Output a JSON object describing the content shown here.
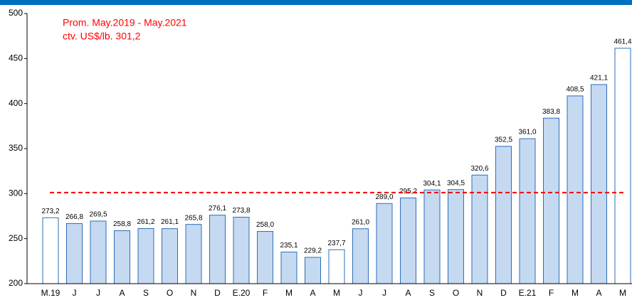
{
  "chart_data": {
    "type": "bar",
    "annotations": [
      "Prom. May.2019 - May.2021",
      "ctv. US$/lb. 301,2"
    ],
    "reference_line": {
      "value": 301.2,
      "color": "#ff0000"
    },
    "categories": [
      "M.19",
      "J",
      "J",
      "A",
      "S",
      "O",
      "N",
      "D",
      "E.20",
      "F",
      "M",
      "A",
      "M",
      "J",
      "J",
      "A",
      "S",
      "O",
      "N",
      "D",
      "E.21",
      "F",
      "M",
      "A",
      "M"
    ],
    "values": [
      273.2,
      266.8,
      269.5,
      258.8,
      261.2,
      261.1,
      265.8,
      276.1,
      273.8,
      258.0,
      235.1,
      229.2,
      237.7,
      261.0,
      289.0,
      295.2,
      304.1,
      304.5,
      320.6,
      352.5,
      361.0,
      383.8,
      408.5,
      421.1,
      461.4
    ],
    "value_labels": [
      "273,2",
      "266,8",
      "269,5",
      "258,8",
      "261,2",
      "261,1",
      "265,8",
      "276,1",
      "273,8",
      "258,0",
      "235,1",
      "229,2",
      "237,7",
      "261,0",
      "289,0",
      "295,2",
      "304,1",
      "304,5",
      "320,6",
      "352,5",
      "361,0",
      "383,8",
      "408,5",
      "421,1",
      "461,4"
    ],
    "colors": [
      "#ffffff",
      "#c5d9f1",
      "#c5d9f1",
      "#c5d9f1",
      "#c5d9f1",
      "#c5d9f1",
      "#c5d9f1",
      "#c5d9f1",
      "#c5d9f1",
      "#c5d9f1",
      "#c5d9f1",
      "#c5d9f1",
      "#ffffff",
      "#c5d9f1",
      "#c5d9f1",
      "#c5d9f1",
      "#c5d9f1",
      "#c5d9f1",
      "#c5d9f1",
      "#c5d9f1",
      "#c5d9f1",
      "#c5d9f1",
      "#c5d9f1",
      "#c5d9f1",
      "#ffffff"
    ],
    "edge_color": "#2e6fb7",
    "ylim": [
      200,
      500
    ],
    "yticks": [
      200,
      250,
      300,
      350,
      400,
      450,
      500
    ]
  }
}
